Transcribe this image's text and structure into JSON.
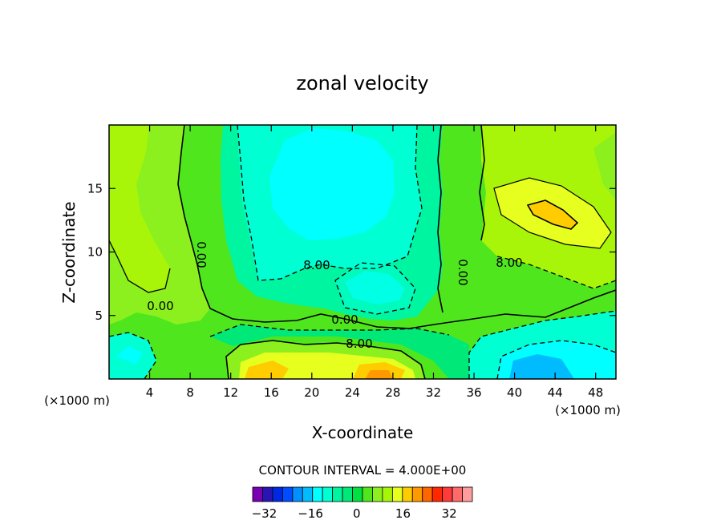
{
  "chart_data": {
    "type": "heatmap",
    "title": "zonal velocity",
    "xlabel": "X-coordinate",
    "ylabel": "Z-coordinate",
    "x_unit_left": "(×1000 m)",
    "x_unit_right": "(×1000 m)",
    "xlim": [
      0,
      50
    ],
    "ylim": [
      0,
      20
    ],
    "xticks": [
      4,
      8,
      12,
      16,
      20,
      24,
      28,
      32,
      36,
      40,
      44,
      48
    ],
    "yticks": [
      5,
      10,
      15
    ],
    "contour_interval_text": "CONTOUR INTERVAL = 4.000E+00",
    "contour_labels": [
      "0.00",
      "8.00",
      "0.00",
      "0.00",
      "8.00",
      "0.00",
      "8.00"
    ],
    "colorbar": {
      "min": -36,
      "max": 40,
      "step": 4,
      "tick_values": [
        -32,
        -16,
        0,
        16,
        32
      ],
      "tick_labels": [
        "−32",
        "−16",
        "0",
        "16",
        "32"
      ],
      "colors": [
        "#7a00b4",
        "#2a14b4",
        "#0028e0",
        "#004cff",
        "#0090ff",
        "#00bcff",
        "#00ffff",
        "#00ffd2",
        "#00f5a0",
        "#00e878",
        "#00e040",
        "#50e61e",
        "#8cf01e",
        "#a8f50a",
        "#e6ff1e",
        "#ffcc00",
        "#ff9900",
        "#ff6600",
        "#ff2800",
        "#ff3a3a",
        "#ff6a6a",
        "#ff9c9c"
      ]
    }
  }
}
